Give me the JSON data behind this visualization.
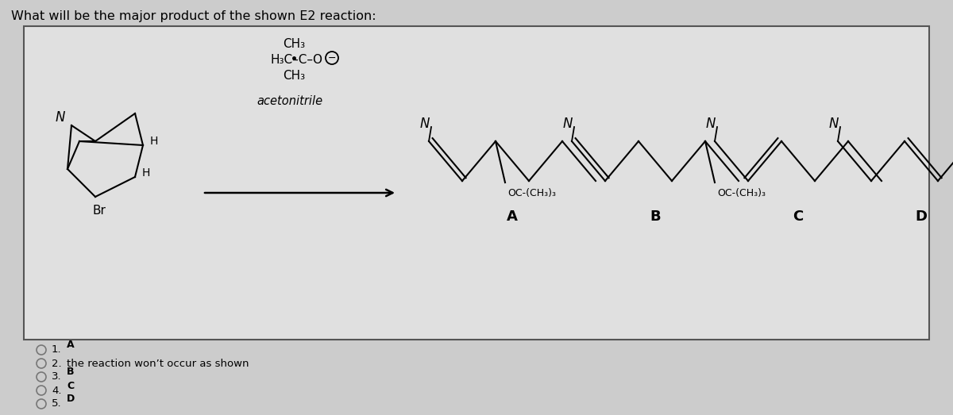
{
  "title": "What will be the major product of the shown E2 reaction:",
  "bg_outer": "#cccccc",
  "bg_box": "#e0e0e0",
  "options": [
    {
      "num": "1.",
      "label": "A"
    },
    {
      "num": "2.",
      "label": "the reaction won’t occur as shown"
    },
    {
      "num": "3.",
      "label": "B"
    },
    {
      "num": "4.",
      "label": "C"
    },
    {
      "num": "5.",
      "label": "D"
    }
  ]
}
